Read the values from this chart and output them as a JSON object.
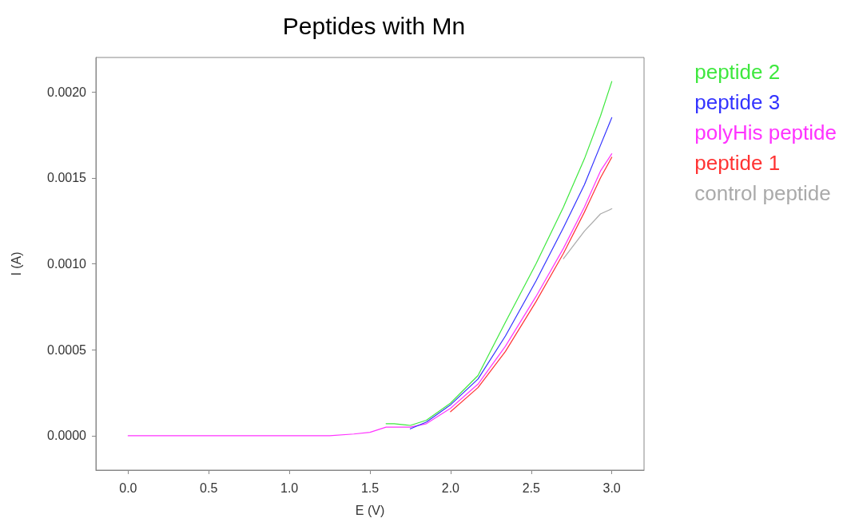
{
  "chart_data": {
    "type": "line",
    "title": "Peptides with Mn",
    "xlabel": "E (V)",
    "ylabel": "I (A)",
    "x": [
      0,
      0.5,
      0.85,
      0.9,
      1.0,
      1.25,
      1.4,
      1.5,
      1.6,
      1.65,
      1.75,
      1.85,
      2.0,
      2.17,
      2.34,
      2.53,
      2.7,
      2.83,
      2.93,
      3.0
    ],
    "series": [
      {
        "name": "peptide 2",
        "color": "#3ee83e",
        "values": [
          null,
          null,
          null,
          null,
          null,
          null,
          null,
          null,
          7e-05,
          7e-05,
          6e-05,
          9e-05,
          0.00019,
          0.00035,
          0.00066,
          0.001,
          0.00133,
          0.00161,
          0.00186,
          0.00206
        ]
      },
      {
        "name": "peptide 3",
        "color": "#3333ff",
        "values": [
          null,
          null,
          null,
          null,
          null,
          null,
          null,
          null,
          null,
          null,
          4e-05,
          8e-05,
          0.00018,
          0.00033,
          0.00058,
          0.0009,
          0.00121,
          0.00146,
          0.00169,
          0.00185
        ]
      },
      {
        "name": "polyHis peptide",
        "color": "#ff33ff",
        "values": [
          0,
          0,
          0,
          0,
          0,
          0,
          1e-05,
          2e-05,
          5e-05,
          5e-05,
          5e-05,
          7e-05,
          0.00016,
          0.0003,
          0.00052,
          0.00081,
          0.00109,
          0.00133,
          0.00154,
          0.00164
        ]
      },
      {
        "name": "peptide 1",
        "color": "#ff3333",
        "values": [
          null,
          null,
          null,
          null,
          null,
          null,
          null,
          null,
          null,
          null,
          null,
          null,
          0.00014,
          0.00028,
          0.00049,
          0.00078,
          0.00106,
          0.0013,
          0.0015,
          0.00162
        ]
      },
      {
        "name": "control peptide",
        "color": "#aaaaaa",
        "values": [
          null,
          null,
          null,
          null,
          null,
          null,
          null,
          null,
          null,
          null,
          null,
          null,
          null,
          null,
          null,
          null,
          0.00103,
          0.00119,
          0.00129,
          0.00132
        ]
      }
    ],
    "xlim": [
      -0.2,
      3.2
    ],
    "xticks": [
      {
        "value": 0,
        "label": "0.0"
      },
      {
        "value": 0.5,
        "label": "0.5"
      },
      {
        "value": 1,
        "label": "1.0"
      },
      {
        "value": 1.5,
        "label": "1.5"
      },
      {
        "value": 2,
        "label": "2.0"
      },
      {
        "value": 2.5,
        "label": "2.5"
      },
      {
        "value": 3,
        "label": "3.0"
      }
    ],
    "ylim": [
      -0.0002,
      0.0022
    ],
    "yticks": [
      {
        "value": 0,
        "label": "0.0000"
      },
      {
        "value": 0.0005,
        "label": "0.0005"
      },
      {
        "value": 0.001,
        "label": "0.0010"
      },
      {
        "value": 0.0015,
        "label": "0.0015"
      },
      {
        "value": 0.002,
        "label": "0.0020"
      }
    ],
    "grid": false,
    "legend": "right",
    "marker": "none",
    "line_style": "solid"
  }
}
